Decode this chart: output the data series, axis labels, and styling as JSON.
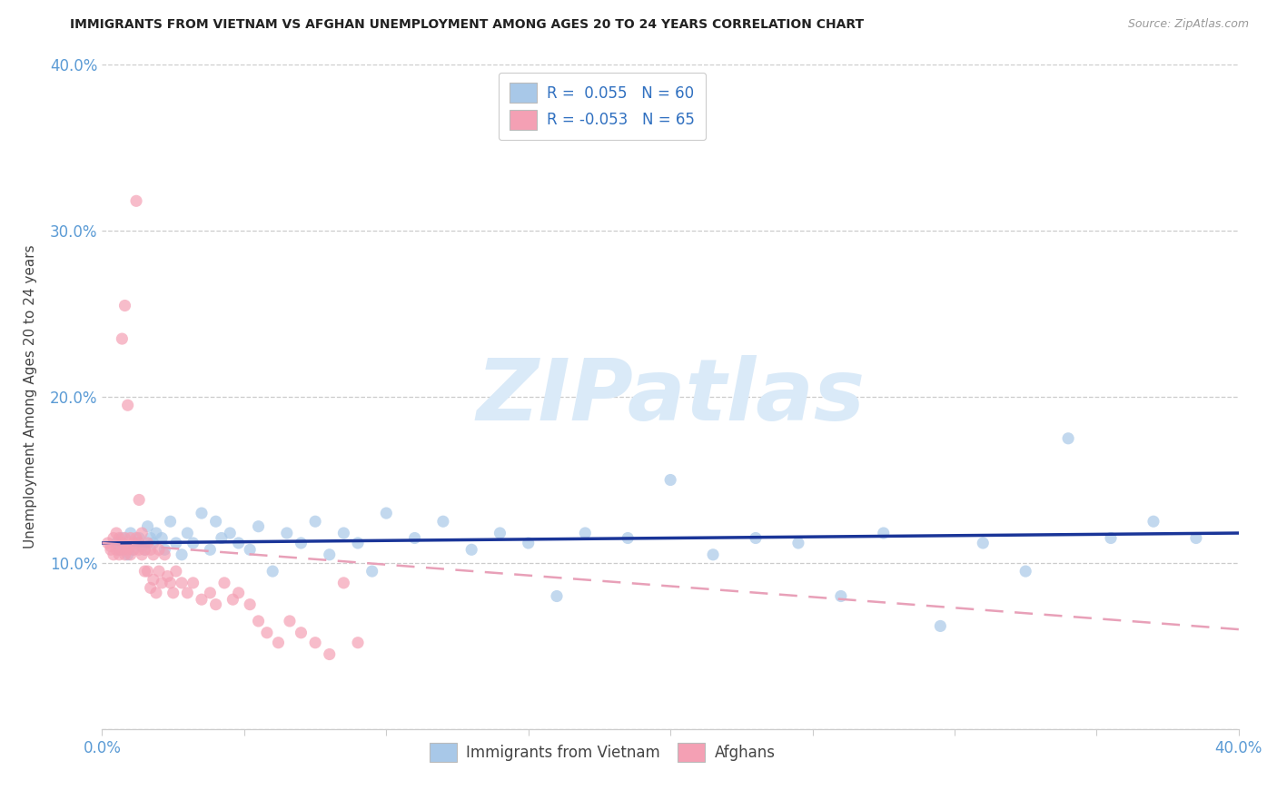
{
  "title": "IMMIGRANTS FROM VIETNAM VS AFGHAN UNEMPLOYMENT AMONG AGES 20 TO 24 YEARS CORRELATION CHART",
  "source": "Source: ZipAtlas.com",
  "ylabel": "Unemployment Among Ages 20 to 24 years",
  "xlim": [
    0.0,
    0.4
  ],
  "ylim": [
    0.0,
    0.4
  ],
  "background_color": "#ffffff",
  "grid_color": "#cccccc",
  "vietnam_color": "#a8c8e8",
  "afghan_color": "#f4a0b4",
  "vietnam_line_color": "#1a3598",
  "afghan_line_color": "#e8a0b8",
  "axis_color": "#5b9bd5",
  "title_color": "#222222",
  "source_color": "#999999",
  "watermark_color": "#daeaf8",
  "vietnam_r": 0.055,
  "vietnam_n": 60,
  "afghan_r": -0.053,
  "afghan_n": 65,
  "legend_r_color": "#3070c0",
  "legend_text_color": "#222222",
  "vietnam_trend_start": 0.112,
  "vietnam_trend_end": 0.118,
  "afghan_trend_start": 0.112,
  "afghan_trend_end": 0.06,
  "vietnam_x": [
    0.005,
    0.006,
    0.007,
    0.008,
    0.009,
    0.01,
    0.011,
    0.012,
    0.013,
    0.014,
    0.015,
    0.016,
    0.017,
    0.018,
    0.019,
    0.021,
    0.022,
    0.024,
    0.026,
    0.028,
    0.03,
    0.032,
    0.035,
    0.038,
    0.04,
    0.042,
    0.045,
    0.048,
    0.052,
    0.055,
    0.06,
    0.065,
    0.07,
    0.075,
    0.08,
    0.085,
    0.09,
    0.095,
    0.1,
    0.11,
    0.12,
    0.13,
    0.14,
    0.15,
    0.16,
    0.17,
    0.185,
    0.2,
    0.215,
    0.23,
    0.245,
    0.26,
    0.275,
    0.295,
    0.31,
    0.325,
    0.34,
    0.355,
    0.37,
    0.385
  ],
  "vietnam_y": [
    0.112,
    0.108,
    0.115,
    0.11,
    0.105,
    0.118,
    0.108,
    0.112,
    0.115,
    0.11,
    0.108,
    0.122,
    0.115,
    0.112,
    0.118,
    0.115,
    0.108,
    0.125,
    0.112,
    0.105,
    0.118,
    0.112,
    0.13,
    0.108,
    0.125,
    0.115,
    0.118,
    0.112,
    0.108,
    0.122,
    0.095,
    0.118,
    0.112,
    0.125,
    0.105,
    0.118,
    0.112,
    0.095,
    0.13,
    0.115,
    0.125,
    0.108,
    0.118,
    0.112,
    0.08,
    0.118,
    0.115,
    0.15,
    0.105,
    0.115,
    0.112,
    0.08,
    0.118,
    0.062,
    0.112,
    0.095,
    0.175,
    0.115,
    0.125,
    0.115
  ],
  "afghan_x": [
    0.002,
    0.003,
    0.003,
    0.004,
    0.004,
    0.005,
    0.005,
    0.006,
    0.006,
    0.007,
    0.007,
    0.008,
    0.008,
    0.009,
    0.009,
    0.01,
    0.01,
    0.011,
    0.011,
    0.012,
    0.012,
    0.013,
    0.013,
    0.014,
    0.014,
    0.015,
    0.015,
    0.016,
    0.016,
    0.017,
    0.017,
    0.018,
    0.018,
    0.019,
    0.02,
    0.02,
    0.021,
    0.022,
    0.023,
    0.024,
    0.025,
    0.026,
    0.028,
    0.03,
    0.032,
    0.035,
    0.038,
    0.04,
    0.043,
    0.046,
    0.048,
    0.052,
    0.055,
    0.058,
    0.062,
    0.066,
    0.07,
    0.075,
    0.08,
    0.085,
    0.09,
    0.013,
    0.007,
    0.008,
    0.009
  ],
  "afghan_y": [
    0.112,
    0.11,
    0.108,
    0.115,
    0.105,
    0.118,
    0.108,
    0.115,
    0.105,
    0.112,
    0.108,
    0.115,
    0.105,
    0.11,
    0.108,
    0.115,
    0.105,
    0.112,
    0.108,
    0.115,
    0.318,
    0.112,
    0.108,
    0.118,
    0.105,
    0.108,
    0.095,
    0.112,
    0.095,
    0.108,
    0.085,
    0.105,
    0.09,
    0.082,
    0.108,
    0.095,
    0.088,
    0.105,
    0.092,
    0.088,
    0.082,
    0.095,
    0.088,
    0.082,
    0.088,
    0.078,
    0.082,
    0.075,
    0.088,
    0.078,
    0.082,
    0.075,
    0.065,
    0.058,
    0.052,
    0.065,
    0.058,
    0.052,
    0.045,
    0.088,
    0.052,
    0.138,
    0.235,
    0.255,
    0.195
  ]
}
